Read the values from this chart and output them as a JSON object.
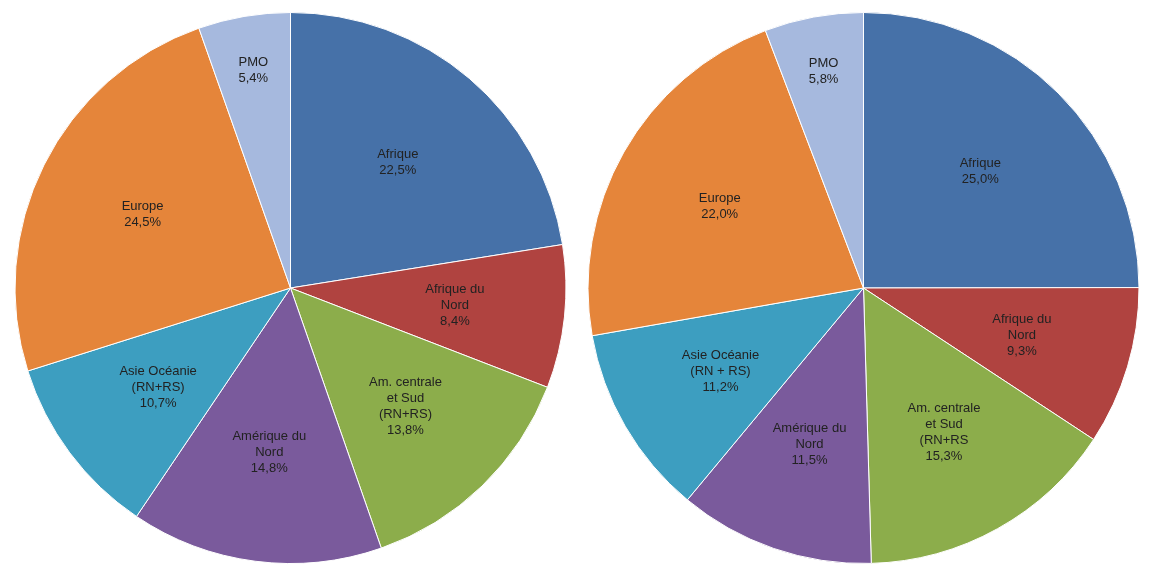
{
  "chart_data": [
    {
      "type": "pie",
      "categories": [
        "Afrique",
        "Afrique du Nord",
        "Am. centrale et Sud (RN+RS)",
        "Amérique du Nord",
        "Asie Océanie (RN+RS)",
        "Europe",
        "PMO"
      ],
      "values": [
        22.5,
        8.4,
        13.8,
        14.8,
        10.7,
        24.5,
        5.4
      ],
      "value_labels": [
        "22,5%",
        "8,4%",
        "13,8%",
        "14,8%",
        "10,7%",
        "24,5%",
        "5,4%"
      ],
      "colors": [
        "#4671a8",
        "#b04340",
        "#8cad4b",
        "#7a5a9c",
        "#3d9ec0",
        "#e5853a",
        "#a6b9de"
      ],
      "legend": false
    },
    {
      "type": "pie",
      "categories": [
        "Afrique",
        "Afrique du Nord",
        "Am. centrale et Sud (RN+RS",
        "Amérique du Nord",
        "Asie Océanie (RN + RS)",
        "Europe",
        "PMO"
      ],
      "values": [
        25.0,
        9.3,
        15.3,
        11.5,
        11.2,
        22.0,
        5.8
      ],
      "value_labels": [
        "25,0%",
        "9,3%",
        "15,3%",
        "11,5%",
        "11,2%",
        "22,0%",
        "5,8%"
      ],
      "colors": [
        "#4671a8",
        "#b04340",
        "#8cad4b",
        "#7a5a9c",
        "#3d9ec0",
        "#e5853a",
        "#a6b9de"
      ],
      "legend": false
    }
  ]
}
